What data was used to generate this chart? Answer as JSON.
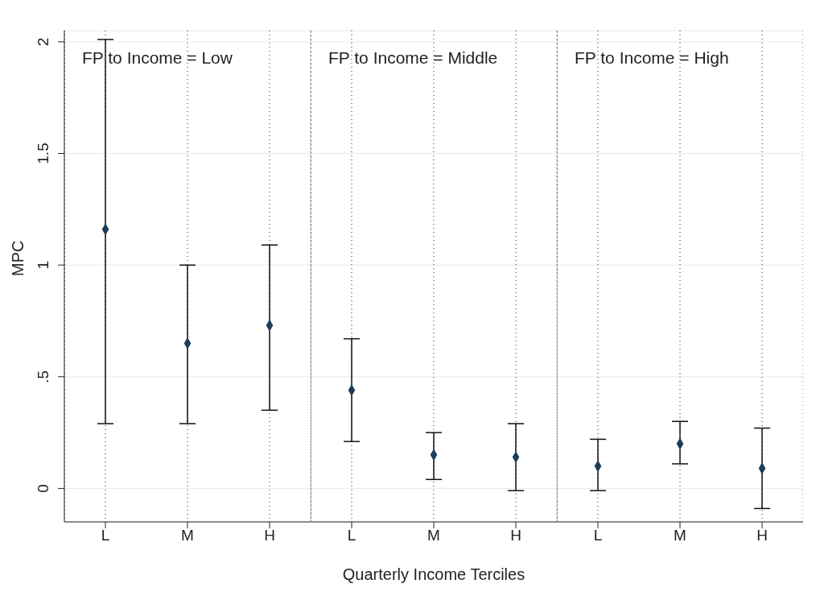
{
  "chart_data": [
    {
      "type": "scatter",
      "title": "FP to Income = Low",
      "ylabel": "MPC",
      "categories": [
        "L",
        "M",
        "H"
      ],
      "values": [
        1.16,
        0.65,
        0.73
      ],
      "errors": [
        [
          0.29,
          2.01
        ],
        [
          0.29,
          1.0
        ],
        [
          0.35,
          1.09
        ]
      ],
      "color": "#1c3c5a",
      "marker": "diamond",
      "ylim": [
        -0.15,
        2.05
      ],
      "yticks": [
        0,
        {
          "value": 0.5,
          "label": ".5"
        },
        1,
        1.5,
        2
      ],
      "grid": true
    },
    {
      "type": "scatter",
      "title": "FP to Income = Middle",
      "xlabel": "Quarterly Income Terciles",
      "categories": [
        "L",
        "M",
        "H"
      ],
      "values": [
        0.44,
        0.15,
        0.14
      ],
      "errors": [
        [
          0.21,
          0.67
        ],
        [
          0.04,
          0.25
        ],
        [
          -0.01,
          0.29
        ]
      ],
      "color": "#1c3c5a",
      "marker": "diamond",
      "ylim": [
        -0.15,
        2.05
      ],
      "yticks": [
        0,
        0.5,
        1,
        1.5,
        2
      ],
      "grid": true,
      "tick_labels": "x"
    },
    {
      "type": "scatter",
      "title": "FP to Income = High",
      "categories": [
        "L",
        "M",
        "H"
      ],
      "values": [
        0.1,
        0.2,
        0.09
      ],
      "errors": [
        [
          -0.01,
          0.22
        ],
        [
          0.11,
          0.3
        ],
        [
          -0.09,
          0.27
        ]
      ],
      "color": "#1c3c5a",
      "marker": "diamond",
      "ylim": [
        -0.15,
        2.05
      ],
      "yticks": [
        0,
        0.5,
        1,
        1.5,
        2
      ],
      "grid": true,
      "tick_labels": "x"
    }
  ]
}
